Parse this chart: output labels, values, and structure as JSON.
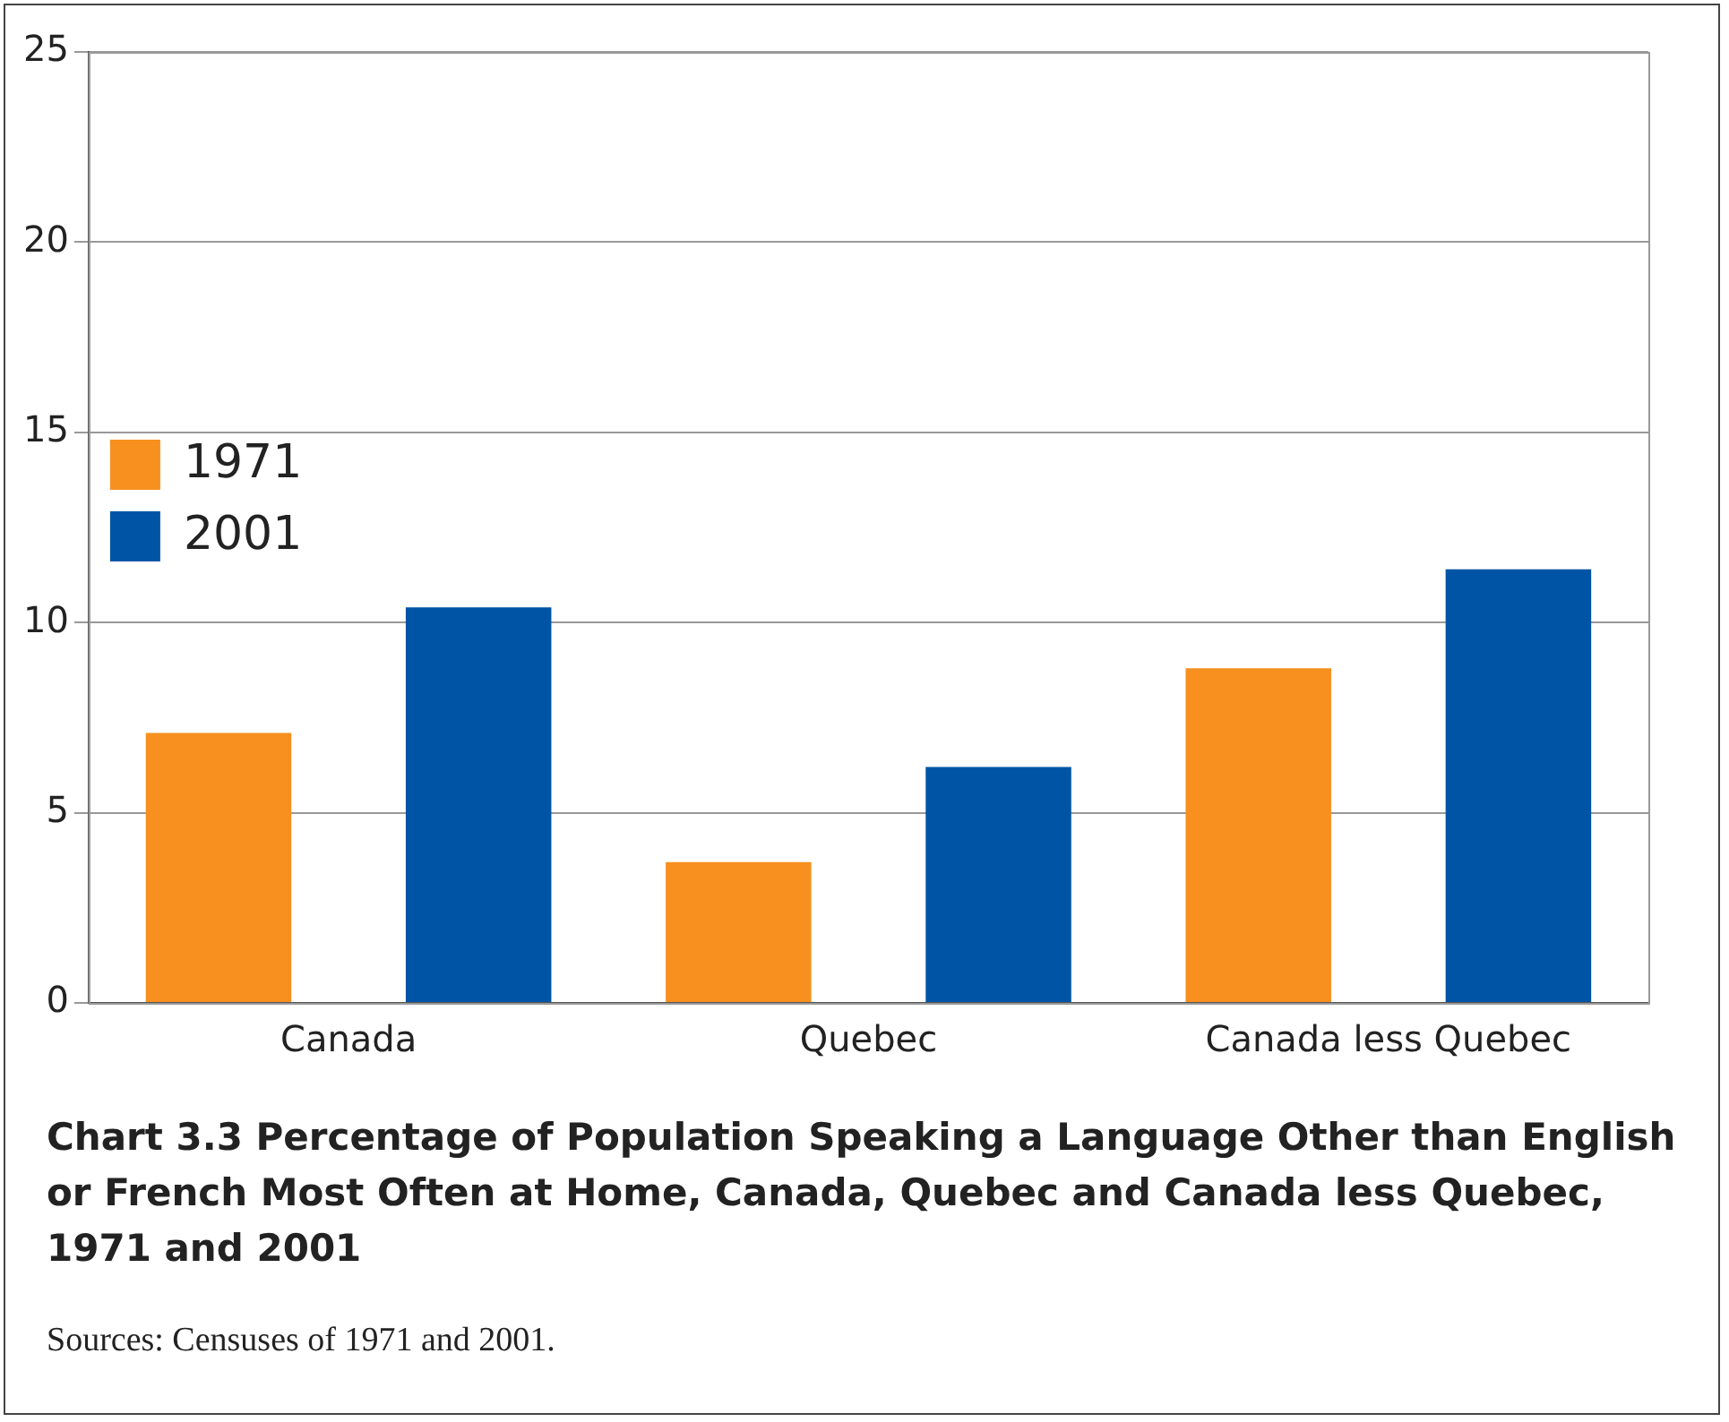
{
  "chart_data": {
    "type": "bar",
    "title": "Chart 3.3  Percentage of Population Speaking a Language Other than English or French Most Often at Home, Canada, Quebec and Canada less Quebec, 1971 and 2001",
    "categories": [
      "Canada",
      "Quebec",
      "Canada less Quebec"
    ],
    "series": [
      {
        "name": "1971",
        "color": "#f7901e",
        "values": [
          7.1,
          3.7,
          8.8
        ]
      },
      {
        "name": "2001",
        "color": "#0054a6",
        "values": [
          10.4,
          6.2,
          11.4
        ]
      }
    ],
    "ylim": [
      0,
      25
    ],
    "yticks": [
      0,
      5,
      10,
      15,
      20,
      25
    ],
    "grid": "y",
    "legend": "top",
    "annotations": [
      "Sources: Censuses of 1971 and 2001."
    ]
  }
}
